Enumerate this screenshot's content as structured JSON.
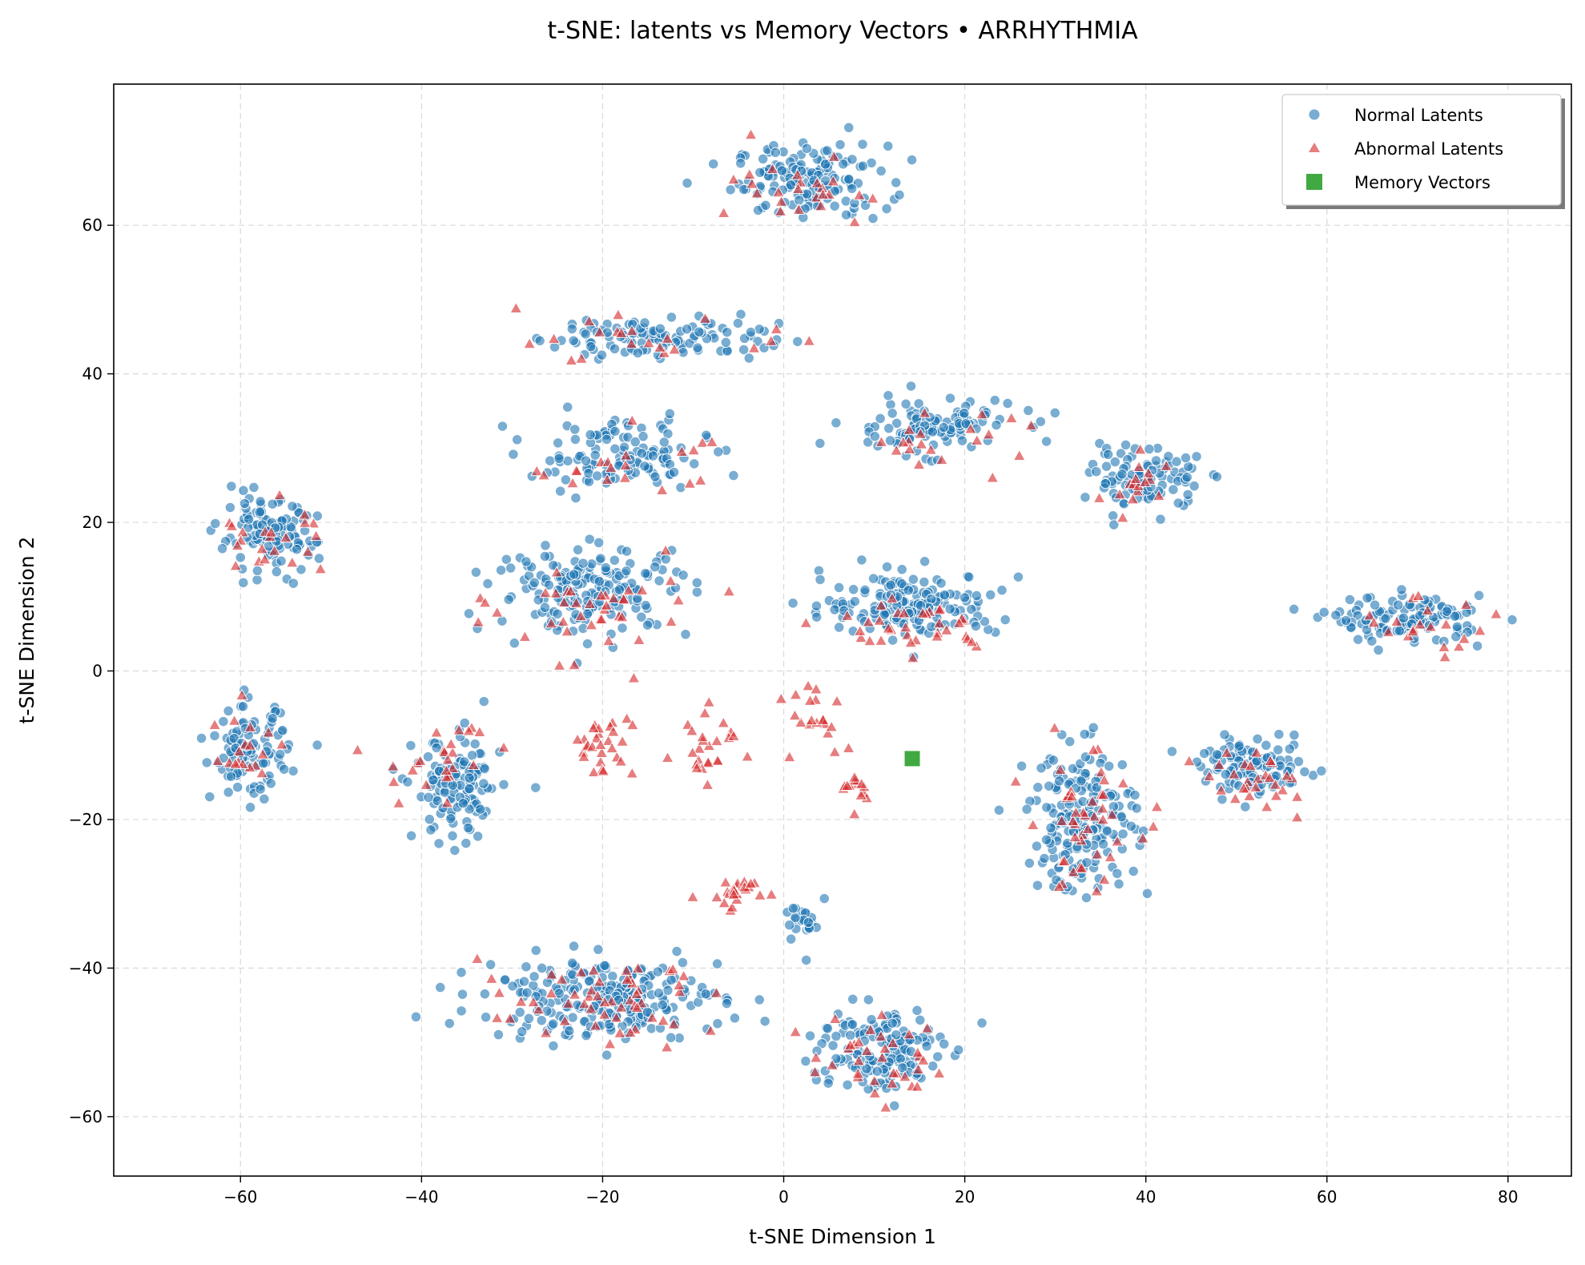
{
  "chart_data": {
    "type": "scatter",
    "title": "t-SNE: latents vs Memory Vectors • ARRHYTHMIA",
    "xlabel": "t-SNE Dimension 1",
    "ylabel": "t-SNE Dimension 2",
    "xlim": [
      -74,
      87
    ],
    "ylim": [
      -68,
      79
    ],
    "xticks": [
      -60,
      -40,
      -20,
      0,
      20,
      40,
      60,
      80
    ],
    "yticks": [
      -60,
      -40,
      -20,
      0,
      20,
      40,
      60
    ],
    "xtick_labels": [
      "−60",
      "−40",
      "−20",
      "0",
      "20",
      "40",
      "60",
      "80"
    ],
    "ytick_labels": [
      "−60",
      "−40",
      "−20",
      "0",
      "20",
      "40",
      "60"
    ],
    "grid": true,
    "legend_position": "top-right",
    "series": [
      {
        "name": "Normal Latents",
        "marker": "circle",
        "color": "#1f77b4",
        "clusters": [
          {
            "center": [
              3,
              66
            ],
            "spread": [
              7,
              4
            ],
            "count": 150
          },
          {
            "center": [
              -14,
              45
            ],
            "spread": [
              11,
              2.5
            ],
            "count": 110
          },
          {
            "center": [
              -18,
              29
            ],
            "spread": [
              8,
              4
            ],
            "count": 120
          },
          {
            "center": [
              16,
              33
            ],
            "spread": [
              8,
              3
            ],
            "count": 110
          },
          {
            "center": [
              40,
              26
            ],
            "spread": [
              5,
              3.5
            ],
            "count": 100
          },
          {
            "center": [
              -57,
              18
            ],
            "spread": [
              4.5,
              4
            ],
            "count": 110
          },
          {
            "center": [
              -21,
              11
            ],
            "spread": [
              9,
              5
            ],
            "count": 180
          },
          {
            "center": [
              14,
              9
            ],
            "spread": [
              8,
              3.5
            ],
            "count": 170
          },
          {
            "center": [
              69,
              7
            ],
            "spread": [
              7,
              2.5
            ],
            "count": 120
          },
          {
            "center": [
              -59,
              -11
            ],
            "spread": [
              3.5,
              5
            ],
            "count": 110
          },
          {
            "center": [
              -36,
              -16
            ],
            "spread": [
              4,
              6
            ],
            "count": 130
          },
          {
            "center": [
              33,
              -20
            ],
            "spread": [
              5,
              8
            ],
            "count": 190
          },
          {
            "center": [
              52,
              -13
            ],
            "spread": [
              5,
              3
            ],
            "count": 110
          },
          {
            "center": [
              -20,
              -44
            ],
            "spread": [
              11,
              4.5
            ],
            "count": 240
          },
          {
            "center": [
              10,
              -51
            ],
            "spread": [
              6,
              5
            ],
            "count": 150
          },
          {
            "center": [
              3,
              -34
            ],
            "spread": [
              2.5,
              3
            ],
            "count": 25
          }
        ]
      },
      {
        "name": "Abnormal Latents",
        "marker": "triangle",
        "color": "#d62728",
        "clusters": [
          {
            "center": [
              3,
              65
            ],
            "spread": [
              7,
              4
            ],
            "count": 25
          },
          {
            "center": [
              -14,
              44
            ],
            "spread": [
              11,
              2.5
            ],
            "count": 22
          },
          {
            "center": [
              -18,
              28
            ],
            "spread": [
              8,
              4
            ],
            "count": 20
          },
          {
            "center": [
              16,
              31
            ],
            "spread": [
              8,
              3
            ],
            "count": 20
          },
          {
            "center": [
              40,
              25
            ],
            "spread": [
              5,
              3.5
            ],
            "count": 16
          },
          {
            "center": [
              -57,
              18
            ],
            "spread": [
              5,
              4
            ],
            "count": 22
          },
          {
            "center": [
              -21,
              8
            ],
            "spread": [
              9,
              5
            ],
            "count": 40
          },
          {
            "center": [
              14,
              6
            ],
            "spread": [
              8,
              3.5
            ],
            "count": 35
          },
          {
            "center": [
              69,
              6
            ],
            "spread": [
              8,
              3
            ],
            "count": 20
          },
          {
            "center": [
              -59,
              -11
            ],
            "spread": [
              3.5,
              5
            ],
            "count": 18
          },
          {
            "center": [
              -38,
              -12
            ],
            "spread": [
              5,
              6
            ],
            "count": 25
          },
          {
            "center": [
              -20,
              -10
            ],
            "spread": [
              3,
              3.5
            ],
            "count": 30
          },
          {
            "center": [
              -8,
              -10
            ],
            "spread": [
              3,
              4
            ],
            "count": 25
          },
          {
            "center": [
              3,
              -5
            ],
            "spread": [
              3,
              4
            ],
            "count": 20
          },
          {
            "center": [
              8,
              -16
            ],
            "spread": [
              2,
              2
            ],
            "count": 14
          },
          {
            "center": [
              -5,
              -30
            ],
            "spread": [
              3,
              2
            ],
            "count": 24
          },
          {
            "center": [
              33,
              -20
            ],
            "spread": [
              5,
              8
            ],
            "count": 45
          },
          {
            "center": [
              52,
              -15
            ],
            "spread": [
              5,
              3.5
            ],
            "count": 28
          },
          {
            "center": [
              -20,
              -45
            ],
            "spread": [
              11,
              4.5
            ],
            "count": 55
          },
          {
            "center": [
              10,
              -52
            ],
            "spread": [
              6,
              5
            ],
            "count": 35
          }
        ]
      },
      {
        "name": "Memory Vectors",
        "marker": "square",
        "color": "#2ca02c",
        "points": [
          [
            14.2,
            -11.8
          ]
        ]
      }
    ]
  }
}
